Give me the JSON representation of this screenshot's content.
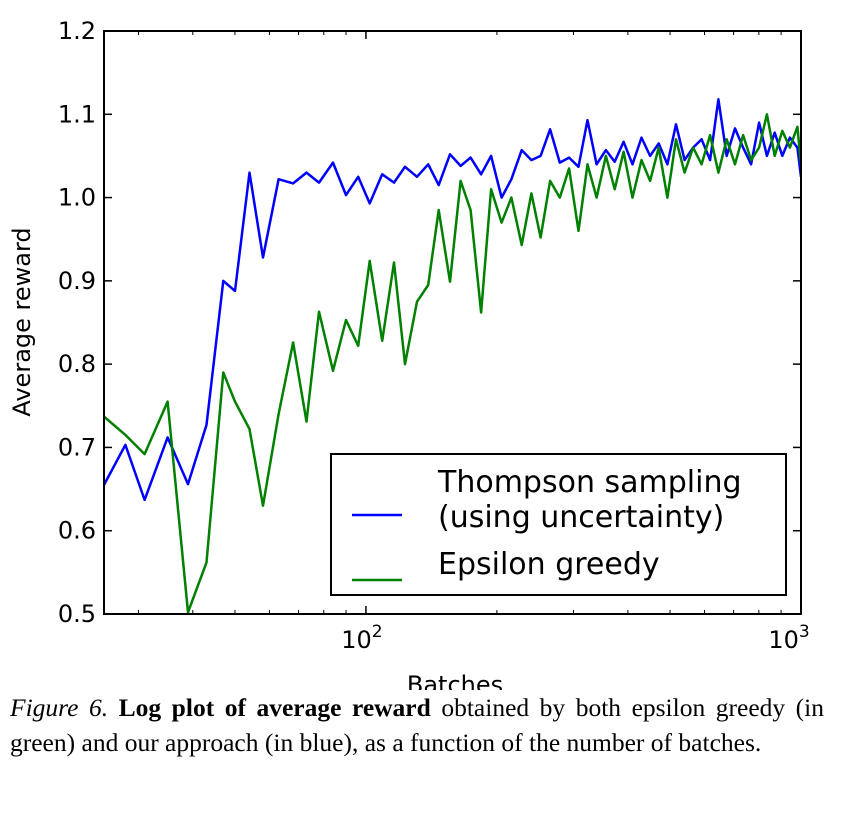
{
  "caption": {
    "figure_label": "Figure 6.",
    "bold_text": "Log plot of average reward",
    "body_text": "obtained by both epsilon greedy (in green) and our approach (in blue), as a function of the number of batches."
  },
  "chart_data": {
    "type": "line",
    "xscale": "log",
    "xlabel": "Batches",
    "ylabel": "Average reward",
    "xlim": [
      25,
      1000
    ],
    "ylim": [
      0.5,
      1.2
    ],
    "yticks": [
      {
        "value": 0.5,
        "label": "0.5"
      },
      {
        "value": 0.6,
        "label": "0.6"
      },
      {
        "value": 0.7,
        "label": "0.7"
      },
      {
        "value": 0.8,
        "label": "0.8"
      },
      {
        "value": 0.9,
        "label": "0.9"
      },
      {
        "value": 1.0,
        "label": "1.0"
      },
      {
        "value": 1.1,
        "label": "1.1"
      },
      {
        "value": 1.2,
        "label": "1.2"
      }
    ],
    "xticks": [
      {
        "value": 100,
        "base": "10",
        "exp": "2"
      },
      {
        "value": 1000,
        "base": "10",
        "exp": "3"
      }
    ],
    "legend": {
      "placement": "lower-right",
      "entries": [
        {
          "lines": [
            "Thompson sampling",
            "(using uncertainty)"
          ],
          "color": "#0000ff"
        },
        {
          "lines": [
            "Epsilon greedy"
          ],
          "color": "#008000"
        }
      ]
    },
    "series": [
      {
        "name": "Thompson sampling (using uncertainty)",
        "color": "#0000ff",
        "x": [
          25,
          28,
          31,
          35,
          39,
          43,
          47,
          50,
          54,
          58,
          63,
          68,
          73,
          78,
          84,
          90,
          96,
          102,
          109,
          116,
          123,
          131,
          139,
          147,
          156,
          165,
          174,
          184,
          194,
          205,
          216,
          228,
          240,
          252,
          265,
          279,
          293,
          308,
          323,
          339,
          356,
          373,
          391,
          410,
          430,
          450,
          471,
          493,
          516,
          540,
          565,
          591,
          618,
          646,
          675,
          705,
          736,
          768,
          801,
          835,
          870,
          906,
          943,
          981,
          1000
        ],
        "y": [
          0.655,
          0.703,
          0.637,
          0.712,
          0.656,
          0.727,
          0.9,
          0.888,
          1.03,
          0.928,
          1.022,
          1.017,
          1.03,
          1.018,
          1.042,
          1.003,
          1.025,
          0.993,
          1.028,
          1.018,
          1.037,
          1.025,
          1.04,
          1.015,
          1.052,
          1.038,
          1.048,
          1.028,
          1.05,
          1.0,
          1.022,
          1.057,
          1.045,
          1.05,
          1.082,
          1.042,
          1.048,
          1.037,
          1.093,
          1.04,
          1.057,
          1.043,
          1.067,
          1.04,
          1.072,
          1.05,
          1.065,
          1.04,
          1.088,
          1.045,
          1.06,
          1.07,
          1.045,
          1.118,
          1.05,
          1.083,
          1.06,
          1.04,
          1.09,
          1.05,
          1.078,
          1.05,
          1.072,
          1.06,
          1.025
        ]
      },
      {
        "name": "Epsilon greedy",
        "color": "#008000",
        "x": [
          25,
          28,
          31,
          35,
          39,
          43,
          47,
          50,
          54,
          58,
          63,
          68,
          73,
          78,
          84,
          90,
          96,
          102,
          109,
          116,
          123,
          131,
          139,
          147,
          156,
          165,
          174,
          184,
          194,
          205,
          216,
          228,
          240,
          252,
          265,
          279,
          293,
          308,
          323,
          339,
          356,
          373,
          391,
          410,
          430,
          450,
          471,
          493,
          516,
          540,
          565,
          591,
          618,
          646,
          675,
          705,
          736,
          768,
          801,
          835,
          870,
          906,
          943,
          981,
          1000
        ],
        "y": [
          0.737,
          0.715,
          0.692,
          0.755,
          0.502,
          0.562,
          0.79,
          0.755,
          0.722,
          0.63,
          0.74,
          0.826,
          0.731,
          0.863,
          0.792,
          0.853,
          0.822,
          0.924,
          0.828,
          0.922,
          0.8,
          0.875,
          0.895,
          0.985,
          0.899,
          1.02,
          0.985,
          0.862,
          1.01,
          0.97,
          1.0,
          0.943,
          1.005,
          0.952,
          1.02,
          1.0,
          1.035,
          0.96,
          1.04,
          1.0,
          1.05,
          1.01,
          1.055,
          1.0,
          1.045,
          1.02,
          1.06,
          1.0,
          1.07,
          1.03,
          1.06,
          1.04,
          1.075,
          1.03,
          1.07,
          1.04,
          1.075,
          1.045,
          1.06,
          1.1,
          1.05,
          1.08,
          1.06,
          1.085,
          1.04
        ]
      }
    ]
  }
}
